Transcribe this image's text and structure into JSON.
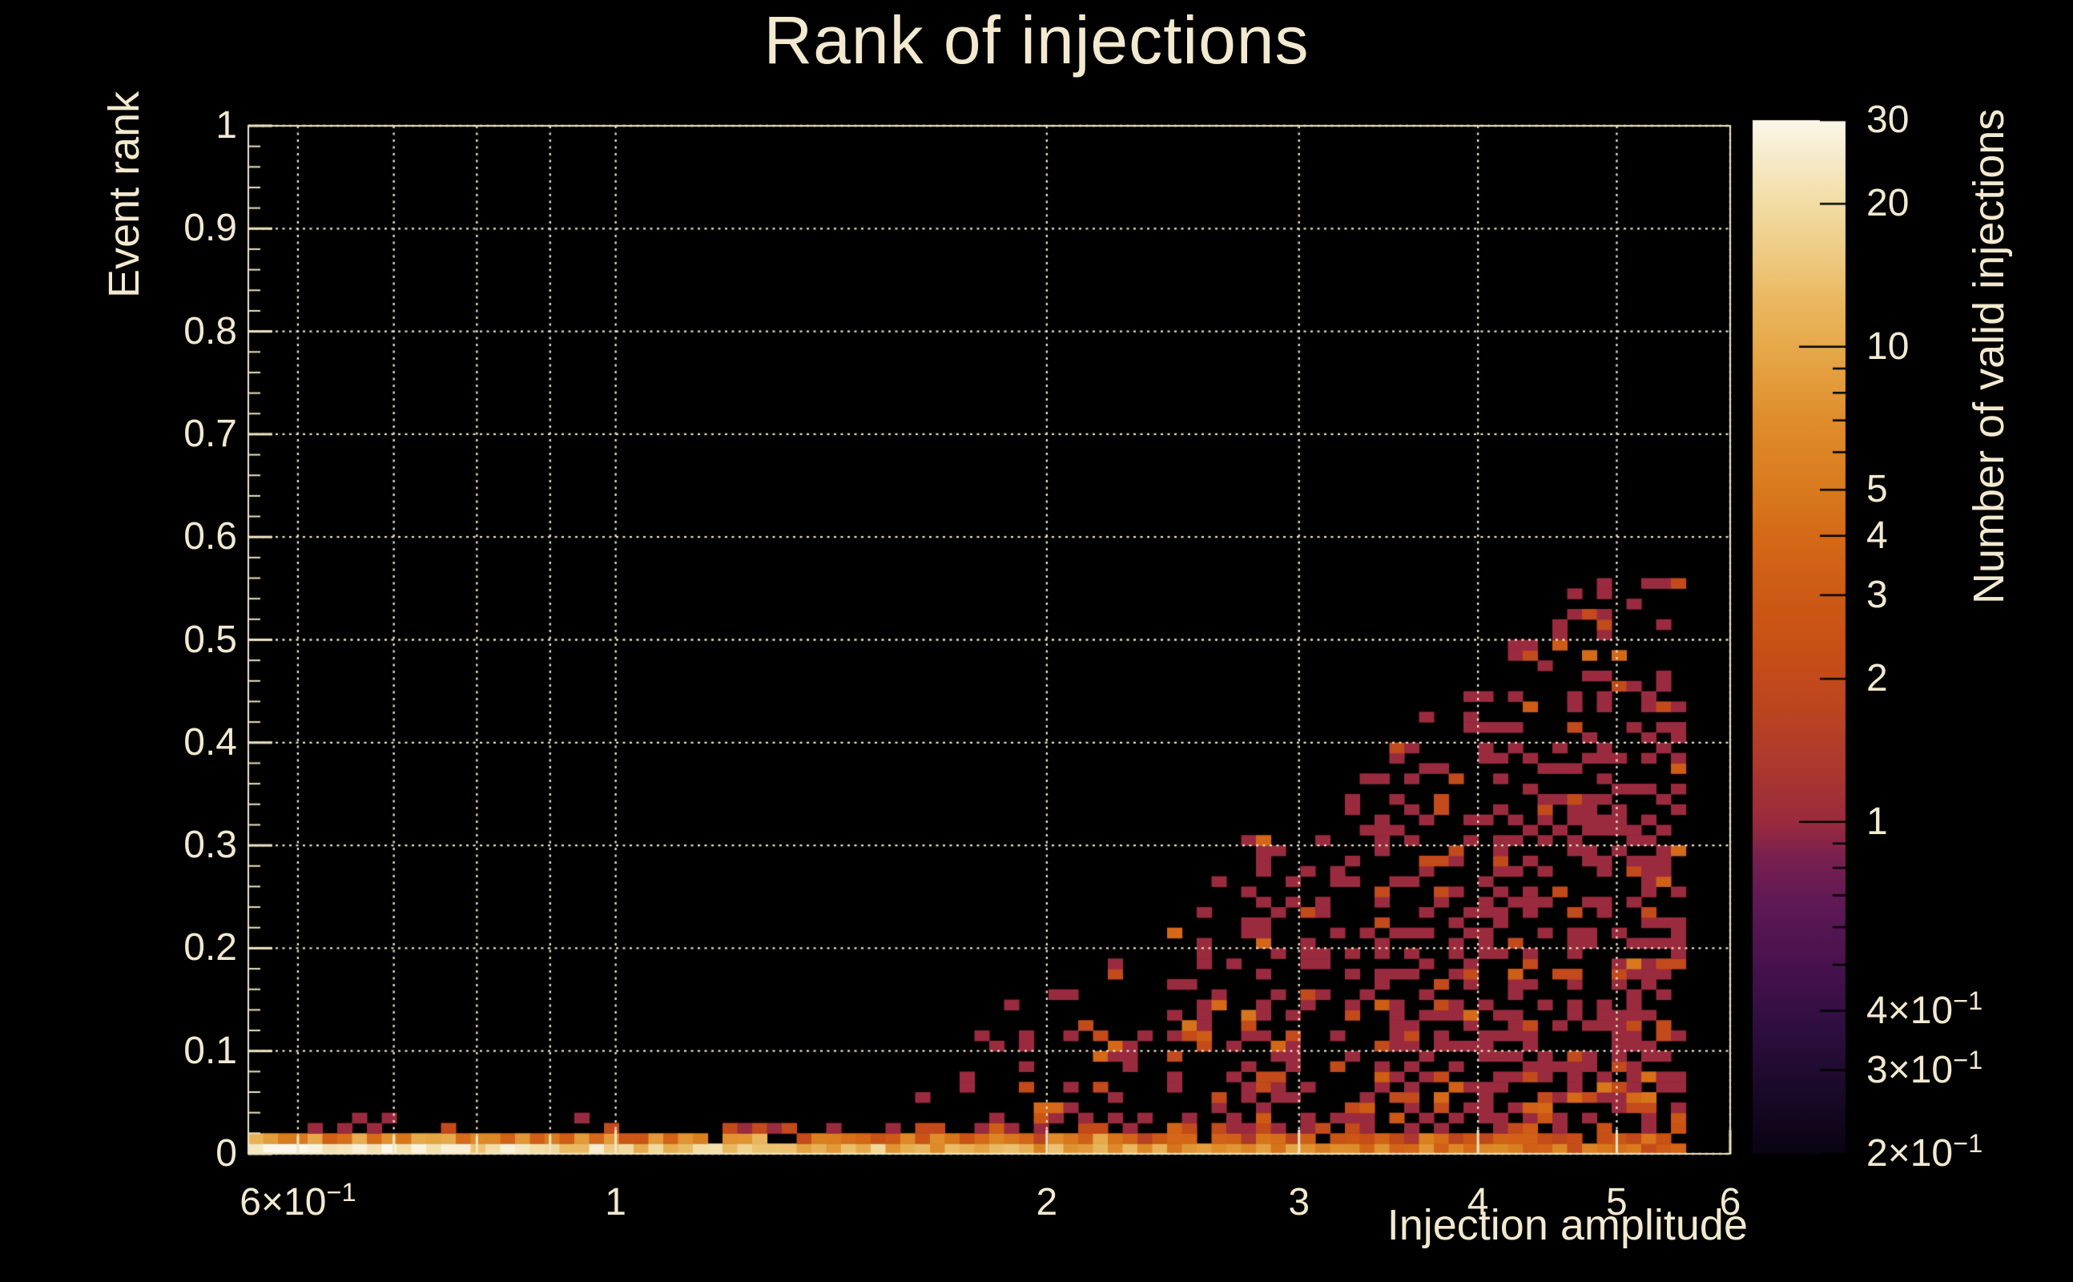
{
  "window": {
    "background": "#000000"
  },
  "chart_data": {
    "type": "heatmap",
    "title": "Rank of injections",
    "x_axis": {
      "label": "Injection amplitude",
      "scale": "log",
      "min": 0.554,
      "max": 6.0,
      "labeled_ticks": [
        {
          "v": 0.6,
          "base": "6×10",
          "sup": "−1"
        },
        {
          "v": 1,
          "base": "1"
        },
        {
          "v": 2,
          "base": "2"
        },
        {
          "v": 3,
          "base": "3"
        },
        {
          "v": 4,
          "base": "4"
        },
        {
          "v": 5,
          "base": "5"
        },
        {
          "v": 6,
          "base": "6"
        }
      ],
      "tick_values": [
        0.6,
        0.7,
        0.8,
        0.9,
        1,
        2,
        3,
        4,
        5,
        6
      ],
      "grid_values": [
        0.6,
        0.7,
        0.8,
        0.9,
        1,
        2,
        3,
        4,
        5,
        6
      ]
    },
    "y_axis": {
      "label": "Event rank",
      "min": 0,
      "max": 1,
      "labeled_ticks": [
        {
          "v": 0,
          "base": "0"
        },
        {
          "v": 0.1,
          "base": "0.1"
        },
        {
          "v": 0.2,
          "base": "0.2"
        },
        {
          "v": 0.3,
          "base": "0.3"
        },
        {
          "v": 0.4,
          "base": "0.4"
        },
        {
          "v": 0.5,
          "base": "0.5"
        },
        {
          "v": 0.6,
          "base": "0.6"
        },
        {
          "v": 0.7,
          "base": "0.7"
        },
        {
          "v": 0.8,
          "base": "0.8"
        },
        {
          "v": 0.9,
          "base": "0.9"
        },
        {
          "v": 1,
          "base": "1"
        }
      ],
      "minor_step": 0.02,
      "grid_step": 0.1
    },
    "colorbar": {
      "label": "Number of valid injections",
      "scale": "log",
      "min": 0.2,
      "max": 30,
      "labeled_ticks": [
        {
          "v": 30,
          "base": "30"
        },
        {
          "v": 20,
          "base": "20"
        },
        {
          "v": 10,
          "base": "10"
        },
        {
          "v": 5,
          "base": "5"
        },
        {
          "v": 4,
          "base": "4"
        },
        {
          "v": 3,
          "base": "3"
        },
        {
          "v": 2,
          "base": "2"
        },
        {
          "v": 1,
          "base": "1"
        },
        {
          "v": 0.4,
          "base": "4×10",
          "sup": "−1"
        },
        {
          "v": 0.3,
          "base": "3×10",
          "sup": "−1"
        },
        {
          "v": 0.2,
          "base": "2×10",
          "sup": "−1"
        }
      ],
      "tick_values": [
        0.2,
        0.3,
        0.4,
        0.5,
        0.6,
        0.7,
        0.8,
        0.9,
        1,
        2,
        3,
        4,
        5,
        6,
        7,
        8,
        9,
        10,
        20,
        30
      ],
      "decade_ticks": [
        1,
        10
      ],
      "palette_stops": [
        [
          0.0,
          "#0a0412"
        ],
        [
          0.06,
          "#190a28"
        ],
        [
          0.12,
          "#2e0e40"
        ],
        [
          0.18,
          "#46124e"
        ],
        [
          0.24,
          "#5e1955"
        ],
        [
          0.285,
          "#772050"
        ],
        [
          0.321,
          "#9a2b3e"
        ],
        [
          0.37,
          "#ab3730"
        ],
        [
          0.43,
          "#bc4520"
        ],
        [
          0.46,
          "#c34a1b"
        ],
        [
          0.5,
          "#c85215"
        ],
        [
          0.54,
          "#cd5a15"
        ],
        [
          0.6,
          "#d56a18"
        ],
        [
          0.645,
          "#d97b1e"
        ],
        [
          0.71,
          "#e08d2b"
        ],
        [
          0.78,
          "#e6a94a"
        ],
        [
          0.83,
          "#eaba62"
        ],
        [
          0.86,
          "#eec77c"
        ],
        [
          0.92,
          "#f2dda4"
        ],
        [
          0.96,
          "#f6e9c6"
        ],
        [
          1.0,
          "#fbf7ea"
        ]
      ]
    },
    "heatmap": {
      "columns": 100,
      "rows": 100,
      "data_columns": 97,
      "value_range": [
        0.2,
        30
      ],
      "summary": "Dense band of high counts (10-30, cream/white cells) along event rank ~0 across all amplitudes, counts decaying toward higher amplitude; rows 1-3 mostly orange counts 2-8; sparse count 1-3 maroon/orange cells fan upward starting near amplitude 1.6, reaching event rank ~0.56 near amplitude 5.5; region above the envelope and left of amplitude 1.6 empty.",
      "generator": {
        "seed": 1337,
        "row0": {
          "amp": 16,
          "pow": 0.95,
          "noise_lo": 0.65,
          "noise_hi": 1.75,
          "vmax": 30,
          "right_red_x": 4.5,
          "right_red_p": 0.18
        },
        "row1": {
          "p": 0.9,
          "amp": 6.5,
          "pow": 0.6,
          "noise_lo": 0.35,
          "noise_hi": 1.45,
          "vmax": 12,
          "boost_p": 0.12,
          "boost": 1.8
        },
        "row2": {
          "x_split": 1.6,
          "p_left": 0.42,
          "p_right": 0.58
        },
        "row3": {
          "x_split": 1.8,
          "p_left": 0.1,
          "p_right": 0.4
        },
        "sparse": {
          "x_min": 0.85,
          "x_max": 1.55,
          "p": 0.02
        },
        "scatter": {
          "x_start": 1.55,
          "x_full": 5.2,
          "e_max": 0.57,
          "e_pow": 0.85,
          "dens_base": 0.18,
          "dens_slope": 0.45,
          "rel_damp": 0.7,
          "p1": 0.8,
          "p2": 0.94,
          "low_rank_orange_p": 0.3,
          "outlier_p": 0.12
        }
      }
    },
    "styles": {
      "text_color": "#f2e9cf",
      "axis_color": "#efe5c4",
      "grid_color": "#efe5c4",
      "background": "#000000"
    }
  }
}
